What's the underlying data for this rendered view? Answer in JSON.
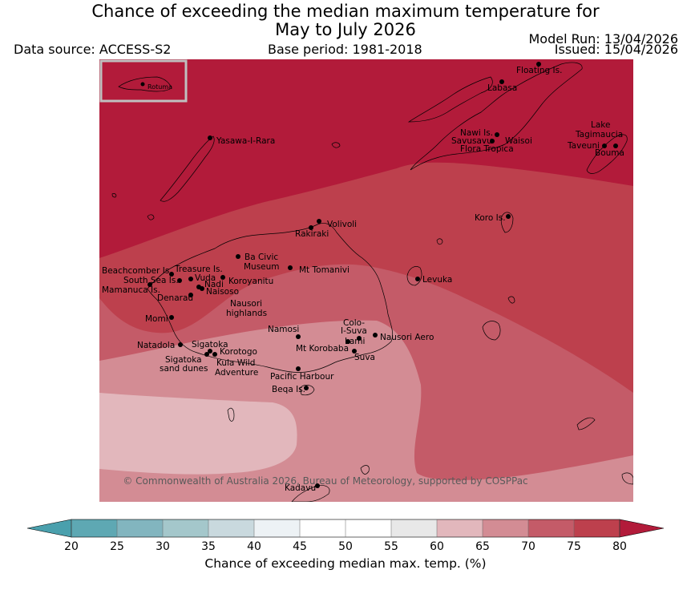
{
  "header": {
    "title_line1": "Chance of exceeding the median maximum temperature for",
    "title_line2": "May to July 2026",
    "data_source": "Data source: ACCESS-S2",
    "base_period": "Base period: 1981-2018",
    "model_run": "Model Run: 13/04/2026",
    "issued": "Issued: 15/04/2026"
  },
  "map": {
    "inset_label": "Rotuma",
    "copyright": "© Commonwealth of Australia 2026, Bureau of Meteorology, supported by COSPPac",
    "places": [
      {
        "name": "Floating Is."
      },
      {
        "name": "Labasa"
      },
      {
        "name": "Yasawa-I-Rara"
      },
      {
        "name": "Nawi Is."
      },
      {
        "name": "Savusavu"
      },
      {
        "name": "Flora Tropica"
      },
      {
        "name": "Waisoi"
      },
      {
        "name": "Lake"
      },
      {
        "name": "Tagimaucia"
      },
      {
        "name": "Taveuni"
      },
      {
        "name": "Bouma"
      },
      {
        "name": "Volivoli"
      },
      {
        "name": "Rakiraki"
      },
      {
        "name": "Koro Is."
      },
      {
        "name": "Ba Civic"
      },
      {
        "name": "Museum"
      },
      {
        "name": "Mt Tomanivi"
      },
      {
        "name": "Beachcomber Is."
      },
      {
        "name": "Treasure Is."
      },
      {
        "name": "South Sea Is."
      },
      {
        "name": "Vuda"
      },
      {
        "name": "Koroyanitu"
      },
      {
        "name": "Nadi"
      },
      {
        "name": "Mamanuca Is."
      },
      {
        "name": "Naisoso"
      },
      {
        "name": "Denarau"
      },
      {
        "name": "Nausori"
      },
      {
        "name": "highlands"
      },
      {
        "name": "Levuka"
      },
      {
        "name": "Momi"
      },
      {
        "name": "Colo-"
      },
      {
        "name": "I-Suva"
      },
      {
        "name": "Namosi"
      },
      {
        "name": "Nausori Aero"
      },
      {
        "name": "Lami"
      },
      {
        "name": "Natadola"
      },
      {
        "name": "Mt Korobaba"
      },
      {
        "name": "Sigatoka"
      },
      {
        "name": "Suva"
      },
      {
        "name": "Korotogo"
      },
      {
        "name": "Sigatoka"
      },
      {
        "name": "sand dunes"
      },
      {
        "name": "Kula Wild"
      },
      {
        "name": "Adventure"
      },
      {
        "name": "Pacific Harbour"
      },
      {
        "name": "Beqa Is."
      },
      {
        "name": "Kadavu"
      }
    ]
  },
  "colorbar": {
    "title": "Chance of exceeding median max. temp. (%)",
    "ticks": [
      "20",
      "25",
      "30",
      "35",
      "40",
      "45",
      "50",
      "55",
      "60",
      "65",
      "70",
      "75",
      "80"
    ],
    "colors": [
      "#5ea8b3",
      "#82b5bf",
      "#a4c7cb",
      "#c9d9de",
      "#edf2f5",
      "#ffffff",
      "#ffffff",
      "#e8e8e8",
      "#e2b7bc",
      "#d38c94",
      "#c45b68",
      "#bd404d"
    ],
    "under_color": "#4aa0ad",
    "over_color": "#b21b3a"
  }
}
